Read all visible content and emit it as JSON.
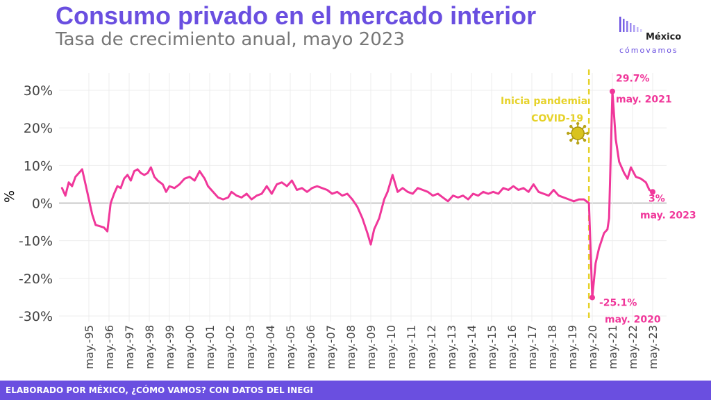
{
  "header": {
    "title": "Consumo privado en el mercado interior",
    "subtitle": "Tasa de crecimiento anual, mayo 2023"
  },
  "logo": {
    "name": "México",
    "tagline": "cómovamos"
  },
  "footer": {
    "text": "ELABORADO POR MÉXICO, ¿CÓMO VAMOS? CON DATOS DEL INEGI"
  },
  "colors": {
    "line": "#f0379a",
    "accent": "#6a4fe0",
    "pandemic": "#e6d22a"
  },
  "chart_data": {
    "type": "line",
    "title": "Consumo privado en el mercado interior",
    "subtitle": "Tasa de crecimiento anual, mayo 2023",
    "ylabel": "%",
    "xlabel": "",
    "ylim": [
      -30,
      30
    ],
    "y_ticks": [
      {
        "value": 30,
        "label": "30%"
      },
      {
        "value": 20,
        "label": "20%"
      },
      {
        "value": 10,
        "label": "10%"
      },
      {
        "value": 0,
        "label": "0%"
      },
      {
        "value": -10,
        "label": "-10%"
      },
      {
        "value": -20,
        "label": "-20%"
      },
      {
        "value": -30,
        "label": "-30%"
      }
    ],
    "x_tick_labels": [
      "may.-95",
      "may.-96",
      "may.-97",
      "may.-98",
      "may.-99",
      "may.-00",
      "may.-01",
      "may.-02",
      "may.-03",
      "may.-04",
      "may.-05",
      "may.-06",
      "may.-07",
      "may.-08",
      "may.-09",
      "may.-10",
      "may.-11",
      "may.-12",
      "may.-13",
      "may.-14",
      "may.-15",
      "may.-16",
      "may.-17",
      "may.-18",
      "may.-19",
      "may.-20",
      "may.-21",
      "may.-22",
      "may.-23"
    ],
    "grid": true,
    "series": [
      {
        "points": [
          [
            "1994-01",
            4.0
          ],
          [
            "1994-03",
            2.0
          ],
          [
            "1994-05",
            5.5
          ],
          [
            "1994-07",
            4.5
          ],
          [
            "1994-09",
            7.0
          ],
          [
            "1994-11",
            8.0
          ],
          [
            "1995-01",
            9.0
          ],
          [
            "1995-03",
            5.0
          ],
          [
            "1995-05",
            1.0
          ],
          [
            "1995-07",
            -3.0
          ],
          [
            "1995-09",
            -5.8
          ],
          [
            "1995-12",
            -6.2
          ],
          [
            "1996-02",
            -6.5
          ],
          [
            "1996-04",
            -7.5
          ],
          [
            "1996-06",
            0.0
          ],
          [
            "1996-08",
            2.5
          ],
          [
            "1996-10",
            4.5
          ],
          [
            "1996-12",
            4.0
          ],
          [
            "1997-02",
            6.5
          ],
          [
            "1997-04",
            7.5
          ],
          [
            "1997-06",
            6.0
          ],
          [
            "1997-08",
            8.5
          ],
          [
            "1997-10",
            9.0
          ],
          [
            "1997-12",
            8.0
          ],
          [
            "1998-02",
            7.5
          ],
          [
            "1998-04",
            8.0
          ],
          [
            "1998-06",
            9.5
          ],
          [
            "1998-08",
            7.0
          ],
          [
            "1998-10",
            6.0
          ],
          [
            "1999-01",
            5.0
          ],
          [
            "1999-03",
            3.0
          ],
          [
            "1999-05",
            4.5
          ],
          [
            "1999-08",
            4.0
          ],
          [
            "1999-11",
            5.0
          ],
          [
            "2000-02",
            6.5
          ],
          [
            "2000-05",
            7.0
          ],
          [
            "2000-08",
            6.0
          ],
          [
            "2000-11",
            8.5
          ],
          [
            "2001-02",
            6.5
          ],
          [
            "2001-04",
            4.5
          ],
          [
            "2001-06",
            3.5
          ],
          [
            "2001-08",
            2.5
          ],
          [
            "2001-10",
            1.5
          ],
          [
            "2002-01",
            1.0
          ],
          [
            "2002-04",
            1.5
          ],
          [
            "2002-06",
            3.0
          ],
          [
            "2002-09",
            2.0
          ],
          [
            "2002-12",
            1.5
          ],
          [
            "2003-03",
            2.5
          ],
          [
            "2003-06",
            1.0
          ],
          [
            "2003-09",
            2.0
          ],
          [
            "2003-12",
            2.5
          ],
          [
            "2004-03",
            4.5
          ],
          [
            "2004-06",
            2.5
          ],
          [
            "2004-09",
            5.0
          ],
          [
            "2004-12",
            5.5
          ],
          [
            "2005-03",
            4.5
          ],
          [
            "2005-06",
            6.0
          ],
          [
            "2005-09",
            3.5
          ],
          [
            "2005-12",
            4.0
          ],
          [
            "2006-03",
            3.0
          ],
          [
            "2006-06",
            4.0
          ],
          [
            "2006-09",
            4.5
          ],
          [
            "2006-12",
            4.0
          ],
          [
            "2007-03",
            3.5
          ],
          [
            "2007-06",
            2.5
          ],
          [
            "2007-09",
            3.0
          ],
          [
            "2007-12",
            2.0
          ],
          [
            "2008-03",
            2.5
          ],
          [
            "2008-06",
            1.0
          ],
          [
            "2008-09",
            -1.0
          ],
          [
            "2008-12",
            -4.0
          ],
          [
            "2009-03",
            -8.0
          ],
          [
            "2009-05",
            -11.0
          ],
          [
            "2009-07",
            -7.0
          ],
          [
            "2009-10",
            -4.0
          ],
          [
            "2010-01",
            1.0
          ],
          [
            "2010-03",
            3.0
          ],
          [
            "2010-06",
            7.5
          ],
          [
            "2010-09",
            3.0
          ],
          [
            "2010-12",
            4.0
          ],
          [
            "2011-03",
            3.0
          ],
          [
            "2011-06",
            2.5
          ],
          [
            "2011-09",
            4.0
          ],
          [
            "2011-12",
            3.5
          ],
          [
            "2012-03",
            3.0
          ],
          [
            "2012-06",
            2.0
          ],
          [
            "2012-09",
            2.5
          ],
          [
            "2012-12",
            1.5
          ],
          [
            "2013-03",
            0.5
          ],
          [
            "2013-06",
            2.0
          ],
          [
            "2013-09",
            1.5
          ],
          [
            "2013-12",
            2.0
          ],
          [
            "2014-03",
            1.0
          ],
          [
            "2014-06",
            2.5
          ],
          [
            "2014-09",
            2.0
          ],
          [
            "2014-12",
            3.0
          ],
          [
            "2015-03",
            2.5
          ],
          [
            "2015-06",
            3.0
          ],
          [
            "2015-09",
            2.5
          ],
          [
            "2015-12",
            4.0
          ],
          [
            "2016-03",
            3.5
          ],
          [
            "2016-06",
            4.5
          ],
          [
            "2016-09",
            3.5
          ],
          [
            "2016-12",
            4.0
          ],
          [
            "2017-03",
            3.0
          ],
          [
            "2017-06",
            5.0
          ],
          [
            "2017-09",
            3.0
          ],
          [
            "2017-12",
            2.5
          ],
          [
            "2018-03",
            2.0
          ],
          [
            "2018-06",
            3.5
          ],
          [
            "2018-09",
            2.0
          ],
          [
            "2018-12",
            1.5
          ],
          [
            "2019-03",
            1.0
          ],
          [
            "2019-06",
            0.5
          ],
          [
            "2019-09",
            1.0
          ],
          [
            "2019-12",
            1.0
          ],
          [
            "2020-03",
            0.0
          ],
          [
            "2020-05",
            -25.1
          ],
          [
            "2020-07",
            -16.0
          ],
          [
            "2020-09",
            -12.0
          ],
          [
            "2020-12",
            -8.0
          ],
          [
            "2021-02",
            -7.0
          ],
          [
            "2021-03",
            -4.0
          ],
          [
            "2021-05",
            29.7
          ],
          [
            "2021-07",
            17.0
          ],
          [
            "2021-09",
            11.0
          ],
          [
            "2021-12",
            8.0
          ],
          [
            "2022-02",
            6.5
          ],
          [
            "2022-04",
            9.5
          ],
          [
            "2022-07",
            7.0
          ],
          [
            "2022-10",
            6.5
          ],
          [
            "2023-01",
            5.5
          ],
          [
            "2023-03",
            3.5
          ],
          [
            "2023-05",
            3.0
          ]
        ]
      }
    ],
    "pandemic_marker": {
      "x": "2020-03",
      "label_line1": "Inicia pandemia",
      "label_line2": "COVID-19"
    },
    "annotations": [
      {
        "x": "2020-05",
        "y": -25.1,
        "value_label": "-25.1%",
        "date_label": "may. 2020"
      },
      {
        "x": "2021-05",
        "y": 29.7,
        "value_label": "29.7%",
        "date_label": "may. 2021"
      },
      {
        "x": "2023-05",
        "y": 3.0,
        "value_label": "3%",
        "date_label": "may. 2023"
      }
    ]
  }
}
